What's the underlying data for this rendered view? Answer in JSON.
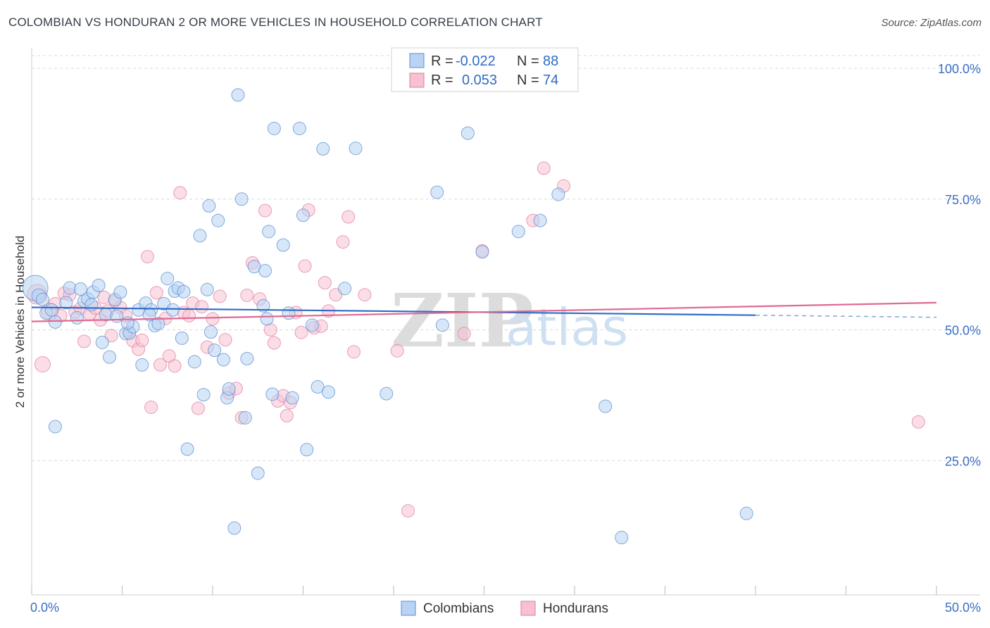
{
  "title": "COLOMBIAN VS HONDURAN 2 OR MORE VEHICLES IN HOUSEHOLD CORRELATION CHART",
  "source": "Source: ZipAtlas.com",
  "colors": {
    "blue_fill": "#b8d3f3",
    "blue_stroke": "#5b8fd6",
    "blue_line": "#2e6bc4",
    "pink_fill": "#f7c1d2",
    "pink_stroke": "#e07a9c",
    "pink_line": "#e06a93",
    "grid": "#d8d8d8",
    "axis_label": "#3a6fc4"
  },
  "legend": {
    "rows": [
      {
        "r_label": "R =",
        "r_value": "-0.022",
        "n_label": "N =",
        "n_value": "88"
      },
      {
        "r_label": "R =",
        "r_value": "0.053",
        "n_label": "N =",
        "n_value": "74"
      }
    ]
  },
  "watermark": {
    "zip": "ZIP",
    "atlas": "atlas"
  },
  "chart_data": {
    "type": "scatter",
    "title": "COLOMBIAN VS HONDURAN 2 OR MORE VEHICLES IN HOUSEHOLD CORRELATION CHART",
    "xlabel": "",
    "ylabel": "2 or more Vehicles in Household",
    "xlim": [
      0,
      50
    ],
    "ylim": [
      0,
      102
    ],
    "x_tick_labels": [
      "0.0%",
      "50.0%"
    ],
    "y_ticks": [
      25,
      50,
      75,
      100
    ],
    "y_tick_labels": [
      "25.0%",
      "50.0%",
      "75.0%",
      "100.0%"
    ],
    "grid": true,
    "legend_position": "bottom-center",
    "series": [
      {
        "name": "Colombians",
        "color": "#5b8fd6",
        "trend": {
          "x": [
            0,
            40
          ],
          "y": [
            54.3,
            52.8
          ],
          "dashed_extension_to_x": 50,
          "dashed_end_y": 52.4
        },
        "points": [
          [
            0.2,
            58.0,
            18
          ],
          [
            0.4,
            56.5,
            10
          ],
          [
            0.6,
            55.8,
            9
          ],
          [
            0.8,
            53.2,
            9
          ],
          [
            1.3,
            51.5,
            9
          ],
          [
            1.1,
            53.8,
            9
          ],
          [
            1.9,
            55.2,
            9
          ],
          [
            2.1,
            58.0,
            9
          ],
          [
            2.5,
            52.3,
            9
          ],
          [
            2.7,
            57.8,
            9
          ],
          [
            2.9,
            55.5,
            9
          ],
          [
            3.1,
            55.9,
            9
          ],
          [
            3.3,
            54.8,
            9
          ],
          [
            3.4,
            57.2,
            9
          ],
          [
            3.7,
            58.5,
            9
          ],
          [
            3.9,
            47.6,
            9
          ],
          [
            4.1,
            52.9,
            9
          ],
          [
            4.3,
            44.8,
            9
          ],
          [
            4.6,
            55.8,
            9
          ],
          [
            4.7,
            52.6,
            9
          ],
          [
            4.9,
            57.2,
            9
          ],
          [
            5.2,
            49.3,
            9
          ],
          [
            5.4,
            49.4,
            9
          ],
          [
            5.6,
            50.6,
            9
          ],
          [
            5.9,
            53.8,
            9
          ],
          [
            6.1,
            43.3,
            9
          ],
          [
            6.3,
            55.1,
            9
          ],
          [
            6.6,
            53.8,
            9
          ],
          [
            6.8,
            50.8,
            9
          ],
          [
            7.0,
            51.2,
            9
          ],
          [
            7.3,
            55.0,
            9
          ],
          [
            7.5,
            59.8,
            9
          ],
          [
            7.8,
            53.8,
            9
          ],
          [
            7.9,
            57.4,
            9
          ],
          [
            8.1,
            58.0,
            9
          ],
          [
            8.3,
            48.4,
            9
          ],
          [
            8.4,
            57.3,
            9
          ],
          [
            8.6,
            27.2,
            9
          ],
          [
            9.0,
            43.9,
            9
          ],
          [
            9.3,
            68.0,
            9
          ],
          [
            9.5,
            37.6,
            9
          ],
          [
            9.8,
            73.7,
            9
          ],
          [
            9.9,
            49.6,
            9
          ],
          [
            10.1,
            46.1,
            9
          ],
          [
            10.3,
            70.9,
            9
          ],
          [
            10.6,
            44.3,
            9
          ],
          [
            10.8,
            37.0,
            9
          ],
          [
            10.9,
            38.7,
            9
          ],
          [
            11.2,
            12.1,
            9
          ],
          [
            11.4,
            94.9,
            9
          ],
          [
            11.6,
            75.0,
            9
          ],
          [
            11.8,
            33.2,
            9
          ],
          [
            11.9,
            44.5,
            9
          ],
          [
            12.3,
            62.1,
            9
          ],
          [
            12.5,
            22.6,
            9
          ],
          [
            12.8,
            54.6,
            9
          ],
          [
            12.9,
            61.3,
            9
          ],
          [
            13.1,
            68.8,
            9
          ],
          [
            13.3,
            37.7,
            9
          ],
          [
            13.4,
            88.5,
            9
          ],
          [
            13.9,
            66.2,
            9
          ],
          [
            14.2,
            53.2,
            9
          ],
          [
            14.4,
            37.0,
            9
          ],
          [
            14.8,
            88.5,
            9
          ],
          [
            15.0,
            71.9,
            9
          ],
          [
            15.2,
            27.1,
            9
          ],
          [
            15.5,
            50.9,
            9
          ],
          [
            15.8,
            39.1,
            9
          ],
          [
            16.1,
            84.6,
            9
          ],
          [
            16.4,
            38.1,
            9
          ],
          [
            17.3,
            57.9,
            9
          ],
          [
            17.9,
            84.7,
            9
          ],
          [
            19.6,
            37.8,
            9
          ],
          [
            22.4,
            76.3,
            9
          ],
          [
            22.7,
            50.9,
            9
          ],
          [
            24.1,
            87.6,
            9
          ],
          [
            24.9,
            64.9,
            9
          ],
          [
            26.9,
            68.8,
            9
          ],
          [
            28.1,
            70.9,
            9
          ],
          [
            29.1,
            75.9,
            9
          ],
          [
            31.7,
            35.4,
            9
          ],
          [
            32.6,
            10.3,
            9
          ],
          [
            39.5,
            14.9,
            9
          ],
          [
            1.3,
            31.5,
            9
          ],
          [
            5.3,
            51.3,
            9
          ],
          [
            6.5,
            52.9,
            9
          ],
          [
            13.0,
            52.1,
            9
          ],
          [
            9.7,
            57.7,
            9
          ]
        ]
      },
      {
        "name": "Hondurans",
        "color": "#e07a9c",
        "trend": {
          "x": [
            0,
            50
          ],
          "y": [
            51.6,
            55.2
          ]
        },
        "points": [
          [
            0.3,
            56.8,
            14
          ],
          [
            0.6,
            43.4,
            11
          ],
          [
            1.0,
            53.5,
            12
          ],
          [
            1.3,
            55.0,
            9
          ],
          [
            1.6,
            52.7,
            9
          ],
          [
            1.8,
            57.0,
            9
          ],
          [
            2.1,
            56.7,
            9
          ],
          [
            2.4,
            53.4,
            9
          ],
          [
            2.7,
            54.1,
            9
          ],
          [
            2.9,
            47.8,
            9
          ],
          [
            3.2,
            53.0,
            9
          ],
          [
            3.5,
            54.2,
            9
          ],
          [
            3.8,
            51.9,
            9
          ],
          [
            4.0,
            56.2,
            9
          ],
          [
            4.2,
            53.6,
            9
          ],
          [
            4.4,
            48.9,
            9
          ],
          [
            4.6,
            55.5,
            9
          ],
          [
            4.9,
            54.3,
            9
          ],
          [
            5.2,
            52.7,
            9
          ],
          [
            5.4,
            49.5,
            9
          ],
          [
            5.6,
            47.9,
            9
          ],
          [
            5.9,
            46.3,
            9
          ],
          [
            6.1,
            48.0,
            9
          ],
          [
            6.4,
            64.0,
            9
          ],
          [
            6.6,
            35.2,
            9
          ],
          [
            6.9,
            57.1,
            9
          ],
          [
            7.1,
            43.3,
            9
          ],
          [
            7.4,
            52.2,
            9
          ],
          [
            7.6,
            45.0,
            9
          ],
          [
            7.9,
            43.1,
            9
          ],
          [
            8.2,
            76.2,
            9
          ],
          [
            8.4,
            53.3,
            9
          ],
          [
            8.7,
            52.7,
            9
          ],
          [
            8.9,
            55.1,
            9
          ],
          [
            9.2,
            35.0,
            9
          ],
          [
            9.4,
            54.4,
            9
          ],
          [
            9.7,
            46.7,
            9
          ],
          [
            10.0,
            52.1,
            9
          ],
          [
            10.4,
            56.4,
            9
          ],
          [
            10.7,
            48.1,
            9
          ],
          [
            10.9,
            37.9,
            9
          ],
          [
            11.3,
            38.8,
            9
          ],
          [
            11.6,
            33.2,
            9
          ],
          [
            11.9,
            56.6,
            9
          ],
          [
            12.2,
            62.8,
            9
          ],
          [
            12.6,
            55.9,
            9
          ],
          [
            12.9,
            72.8,
            9
          ],
          [
            13.2,
            50.0,
            9
          ],
          [
            13.4,
            47.5,
            9
          ],
          [
            13.6,
            36.4,
            9
          ],
          [
            13.9,
            37.4,
            9
          ],
          [
            14.1,
            33.6,
            9
          ],
          [
            14.3,
            36.1,
            9
          ],
          [
            14.6,
            53.3,
            9
          ],
          [
            14.9,
            49.5,
            9
          ],
          [
            15.3,
            72.9,
            9
          ],
          [
            15.6,
            50.4,
            9
          ],
          [
            16.0,
            50.7,
            9
          ],
          [
            16.4,
            53.6,
            9
          ],
          [
            16.8,
            56.7,
            9
          ],
          [
            17.2,
            66.8,
            9
          ],
          [
            17.5,
            71.6,
            9
          ],
          [
            17.8,
            45.8,
            9
          ],
          [
            18.4,
            56.7,
            9
          ],
          [
            20.2,
            46.0,
            9
          ],
          [
            20.8,
            15.4,
            9
          ],
          [
            23.9,
            49.3,
            9
          ],
          [
            24.9,
            65.1,
            9
          ],
          [
            27.7,
            70.9,
            9
          ],
          [
            28.3,
            80.9,
            9
          ],
          [
            29.4,
            77.5,
            9
          ],
          [
            49.0,
            32.4,
            9
          ],
          [
            15.1,
            62.2,
            9
          ],
          [
            16.2,
            59.0,
            9
          ]
        ]
      }
    ]
  },
  "bottom_legend": [
    "Colombians",
    "Hondurans"
  ]
}
